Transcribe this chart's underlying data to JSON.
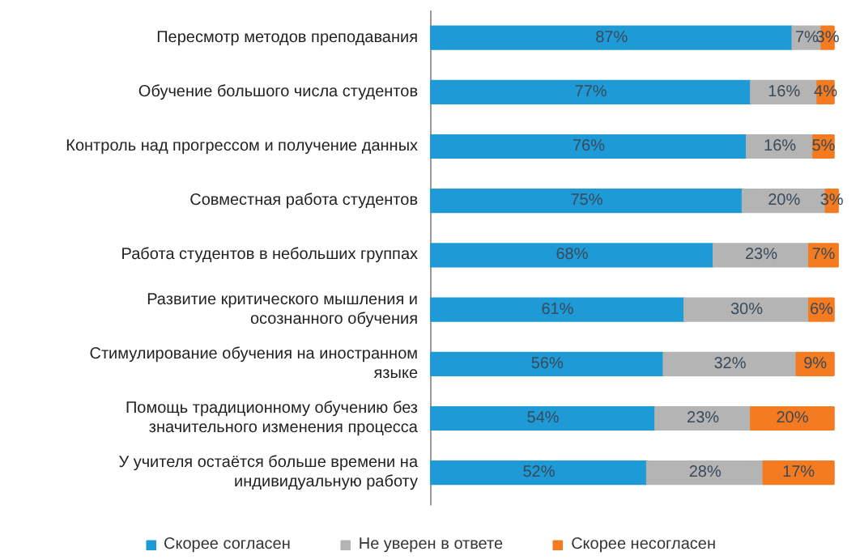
{
  "chart_data": {
    "type": "bar",
    "orientation": "horizontal",
    "stacked": true,
    "tick_labels": "y",
    "legend": "bottom",
    "grid": false,
    "categories": [
      "Пересмотр методов преподавания",
      "Обучение большого числа студентов",
      "Контроль над прогрессом и получение данных",
      "Совместная работа студентов",
      "Работа студентов в небольших группах",
      "Развитие критического мышления и осознанного обучения",
      "Стимулирование обучения на иностранном языке",
      "Помощь традиционному обучению без значительного изменения процесса",
      "У учителя остаётся больше времени на индивидуальную работу"
    ],
    "series": [
      {
        "name": "Скорее согласен",
        "color": "#1e9ad6",
        "values": [
          87,
          77,
          76,
          75,
          68,
          61,
          56,
          54,
          52
        ],
        "value_labels": [
          "87%",
          "77%",
          "76%",
          "75%",
          "68%",
          "61%",
          "56%",
          "54%",
          "52%"
        ]
      },
      {
        "name": "Не уверен в ответе",
        "color": "#b4b4b4",
        "values": [
          7,
          16,
          16,
          20,
          23,
          30,
          32,
          23,
          28
        ],
        "value_labels": [
          "7%",
          "16%",
          "16%",
          "20%",
          "23%",
          "30%",
          "32%",
          "23%",
          "28%"
        ]
      },
      {
        "name": "Скорее несогласен",
        "color": "#f47b20",
        "values": [
          3,
          4,
          5,
          3,
          7,
          6,
          9,
          20,
          17
        ],
        "value_labels": [
          "3%",
          "4%",
          "5%",
          "3%",
          "7%",
          "6%",
          "9%",
          "20%",
          "17%"
        ]
      }
    ]
  }
}
